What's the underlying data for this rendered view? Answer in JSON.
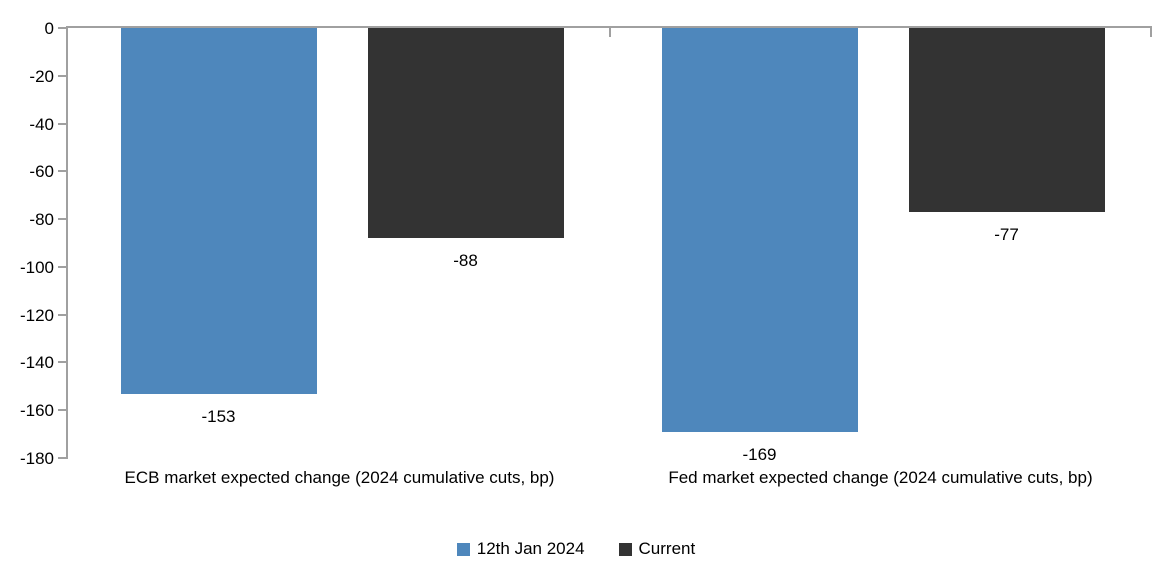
{
  "chart_data": {
    "type": "bar",
    "categories": [
      "ECB market expected change (2024 cumulative cuts, bp)",
      "Fed market expected change (2024 cumulative cuts, bp)"
    ],
    "series": [
      {
        "name": "12th Jan 2024",
        "color": "#4E87BC",
        "values": [
          -153,
          -169
        ]
      },
      {
        "name": "Current",
        "color": "#333333",
        "values": [
          -88,
          -77
        ]
      }
    ],
    "data_labels": [
      "-153",
      "-88",
      "-169",
      "-77"
    ],
    "title": "",
    "xlabel": "",
    "ylabel": "",
    "ylim": [
      -180,
      0
    ],
    "yticks": [
      0,
      -20,
      -40,
      -60,
      -80,
      -100,
      -120,
      -140,
      -160,
      -180
    ],
    "grid": false,
    "legend_position": "bottom",
    "axis_color": "#A0A0A0",
    "text_color": "#000000"
  }
}
